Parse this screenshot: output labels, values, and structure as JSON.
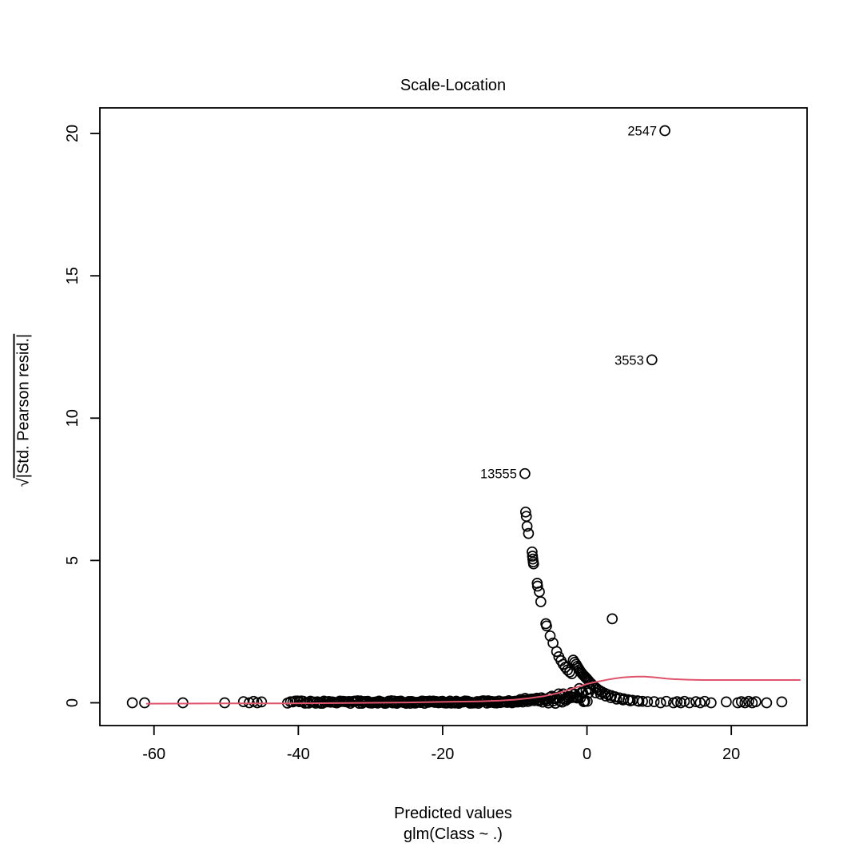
{
  "figure": {
    "title": "Scale-Location",
    "xlabel": "Predicted values",
    "xlabel2": "glm(Class ~ .)",
    "ylabel_radical": "√",
    "ylabel_expr": "|Std. Pearson resid.|"
  },
  "chart_data": {
    "type": "scatter",
    "title": "Scale-Location",
    "xlabel": "Predicted values",
    "model_label": "glm(Class ~ .)",
    "ylabel": "sqrt(|Std. Pearson resid.|)",
    "xlim": [
      -67.5,
      30.5
    ],
    "ylim": [
      -0.8,
      20.9
    ],
    "xticks": [
      -60,
      -40,
      -20,
      0,
      20
    ],
    "yticks": [
      0,
      5,
      10,
      15,
      20
    ],
    "point_style": {
      "shape": "open-circle",
      "color": "#000000",
      "radius_px": 6
    },
    "smooth_color": "#DF536B",
    "labeled_points": [
      {
        "label": "2547",
        "x": 10.8,
        "y": 20.1
      },
      {
        "label": "3553",
        "x": 9.0,
        "y": 12.05
      },
      {
        "label": "13555",
        "x": -8.6,
        "y": 8.05
      }
    ],
    "outlier_points": [
      [
        3.5,
        2.95
      ]
    ],
    "left_points": [
      [
        -63,
        0
      ],
      [
        -61.3,
        0
      ],
      [
        -56,
        0
      ],
      [
        -50.2,
        0
      ],
      [
        -47.6,
        0.04
      ],
      [
        -46.8,
        0
      ],
      [
        -46.2,
        0.05
      ],
      [
        -45.7,
        0
      ],
      [
        -45.1,
        0.03
      ]
    ],
    "right_points": [
      [
        9.3,
        0.04
      ],
      [
        10.2,
        0
      ],
      [
        11,
        0.05
      ],
      [
        12,
        0
      ],
      [
        12.5,
        0.04
      ],
      [
        13,
        0
      ],
      [
        13.5,
        0.05
      ],
      [
        14.2,
        0
      ],
      [
        15.1,
        0.04
      ],
      [
        15.7,
        0
      ],
      [
        16.3,
        0.05
      ],
      [
        17.2,
        0
      ],
      [
        19.3,
        0.03
      ],
      [
        20.9,
        0
      ],
      [
        21.4,
        0.04
      ],
      [
        21.9,
        0
      ],
      [
        22.4,
        0.05
      ],
      [
        22.9,
        0
      ],
      [
        23.4,
        0.04
      ],
      [
        24.9,
        0
      ],
      [
        27,
        0.03
      ]
    ],
    "cluster_points": [
      [
        -8.5,
        6.7
      ],
      [
        -8.4,
        6.55
      ],
      [
        -8.3,
        6.2
      ],
      [
        -8.1,
        5.95
      ],
      [
        -7.6,
        5.3
      ],
      [
        -7.55,
        5.15
      ],
      [
        -7.5,
        5.05
      ],
      [
        -7.45,
        4.95
      ],
      [
        -7.4,
        4.88
      ],
      [
        -6.9,
        4.2
      ],
      [
        -6.85,
        4.1
      ],
      [
        -6.6,
        3.9
      ],
      [
        -6.4,
        3.55
      ],
      [
        -5.7,
        2.78
      ],
      [
        -5.6,
        2.7
      ],
      [
        -5.1,
        2.35
      ],
      [
        -4.7,
        2.1
      ],
      [
        -4.2,
        1.8
      ],
      [
        -3.9,
        1.62
      ],
      [
        -3.6,
        1.48
      ],
      [
        -3.3,
        1.35
      ],
      [
        -3.0,
        1.25
      ],
      [
        -2.7,
        1.15
      ],
      [
        -2.4,
        1.08
      ],
      [
        -2.1,
        1.02
      ],
      [
        -1.9,
        1.5
      ],
      [
        -1.7,
        1.42
      ],
      [
        -1.5,
        1.35
      ],
      [
        -1.35,
        1.28
      ],
      [
        -1.2,
        1.22
      ],
      [
        -1.05,
        1.16
      ],
      [
        -0.9,
        1.1
      ],
      [
        -0.75,
        1.05
      ],
      [
        -0.6,
        1.0
      ],
      [
        -0.45,
        0.96
      ],
      [
        -0.3,
        0.92
      ],
      [
        -0.15,
        0.88
      ],
      [
        0,
        0.84
      ],
      [
        0.2,
        0.78
      ],
      [
        0.4,
        0.72
      ],
      [
        0.6,
        0.67
      ],
      [
        0.8,
        0.62
      ],
      [
        1.0,
        0.57
      ],
      [
        1.25,
        0.52
      ],
      [
        1.5,
        0.47
      ],
      [
        1.8,
        0.42
      ],
      [
        2.1,
        0.38
      ],
      [
        2.5,
        0.33
      ],
      [
        2.9,
        0.29
      ],
      [
        3.4,
        0.25
      ],
      [
        3.9,
        0.21
      ],
      [
        4.5,
        0.17
      ],
      [
        5.1,
        0.14
      ],
      [
        5.7,
        0.11
      ],
      [
        6.3,
        0.09
      ],
      [
        7.0,
        0.07
      ],
      [
        7.7,
        0.05
      ],
      [
        8.4,
        0.04
      ],
      [
        1.2,
        0.35
      ],
      [
        1.9,
        0.3
      ],
      [
        2.6,
        0.24
      ],
      [
        3.3,
        0.18
      ],
      [
        4.1,
        0.13
      ],
      [
        5.0,
        0.1
      ],
      [
        6.0,
        0.07
      ],
      [
        7.2,
        0.05
      ]
    ],
    "zero_band": {
      "x_min": -41.5,
      "x_max": 0.5,
      "count": 230,
      "y_base": 0.02,
      "description": "dense overplotted points along y ≈ 0"
    },
    "smooth_line": [
      [
        -61,
        -0.03
      ],
      [
        -50,
        -0.02
      ],
      [
        -41.5,
        -0.02
      ],
      [
        -35,
        -0.01
      ],
      [
        -30,
        0
      ],
      [
        -25,
        0.01
      ],
      [
        -20,
        0.03
      ],
      [
        -15,
        0.05
      ],
      [
        -12,
        0.08
      ],
      [
        -10,
        0.11
      ],
      [
        -8,
        0.16
      ],
      [
        -6,
        0.23
      ],
      [
        -4,
        0.34
      ],
      [
        -2,
        0.5
      ],
      [
        -1,
        0.58
      ],
      [
        0,
        0.66
      ],
      [
        1,
        0.72
      ],
      [
        2,
        0.77
      ],
      [
        3,
        0.82
      ],
      [
        4,
        0.86
      ],
      [
        5,
        0.89
      ],
      [
        6,
        0.91
      ],
      [
        7,
        0.92
      ],
      [
        8,
        0.92
      ],
      [
        9,
        0.9
      ],
      [
        10,
        0.88
      ],
      [
        11,
        0.85
      ],
      [
        12,
        0.83
      ],
      [
        13,
        0.82
      ],
      [
        14,
        0.81
      ],
      [
        16,
        0.8
      ],
      [
        18,
        0.8
      ],
      [
        20,
        0.8
      ],
      [
        23,
        0.8
      ],
      [
        26,
        0.8
      ],
      [
        29.5,
        0.8
      ]
    ]
  }
}
